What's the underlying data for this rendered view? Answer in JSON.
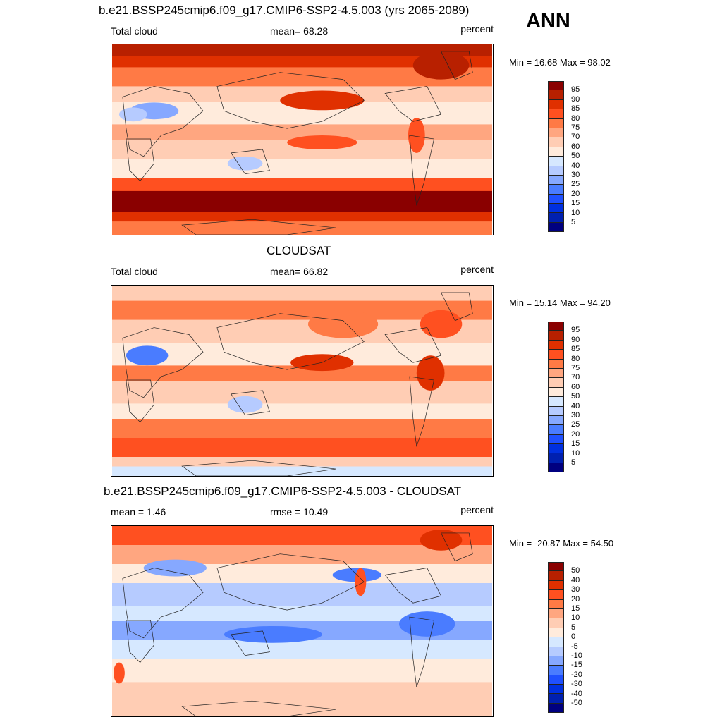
{
  "figure_label": "ANN",
  "colors": [
    "#8a0000",
    "#b82000",
    "#e03000",
    "#ff5020",
    "#ff7a45",
    "#ffa680",
    "#ffcdb4",
    "#ffebdc",
    "#d6e8ff",
    "#b6cbff",
    "#86a8ff",
    "#4a7cff",
    "#1f50ff",
    "#0030e0",
    "#0020b0",
    "#000080"
  ],
  "panels": [
    {
      "title": "b.e21.BSSP245cmip6.f09_g17.CMIP6-SSP2-4.5.003 (yrs 2065-2089)",
      "left": "Total cloud",
      "center": "mean=  68.28",
      "right": "percent",
      "minmax": "Min =  16.68 Max =  98.02",
      "levels": [
        "95",
        "90",
        "85",
        "80",
        "75",
        "70",
        "60",
        "50",
        "40",
        "30",
        "25",
        "20",
        "15",
        "10",
        "5"
      ]
    },
    {
      "title": "CLOUDSAT",
      "left": "Total cloud",
      "center": "mean=  66.82",
      "right": "percent",
      "minmax": "Min =  15.14 Max =  94.20",
      "levels": [
        "95",
        "90",
        "85",
        "80",
        "75",
        "70",
        "60",
        "50",
        "40",
        "30",
        "25",
        "20",
        "15",
        "10",
        "5"
      ]
    },
    {
      "title": "b.e21.BSSP245cmip6.f09_g17.CMIP6-SSP2-4.5.003 - CLOUDSAT",
      "left": "mean =   1.46",
      "center": "rmse =  10.49",
      "right": "percent",
      "minmax": "Min = -20.87 Max =  54.50",
      "levels": [
        "50",
        "40",
        "30",
        "20",
        "15",
        "10",
        "5",
        "0",
        "-5",
        "-10",
        "-15",
        "-20",
        "-30",
        "-40",
        "-50"
      ]
    }
  ]
}
